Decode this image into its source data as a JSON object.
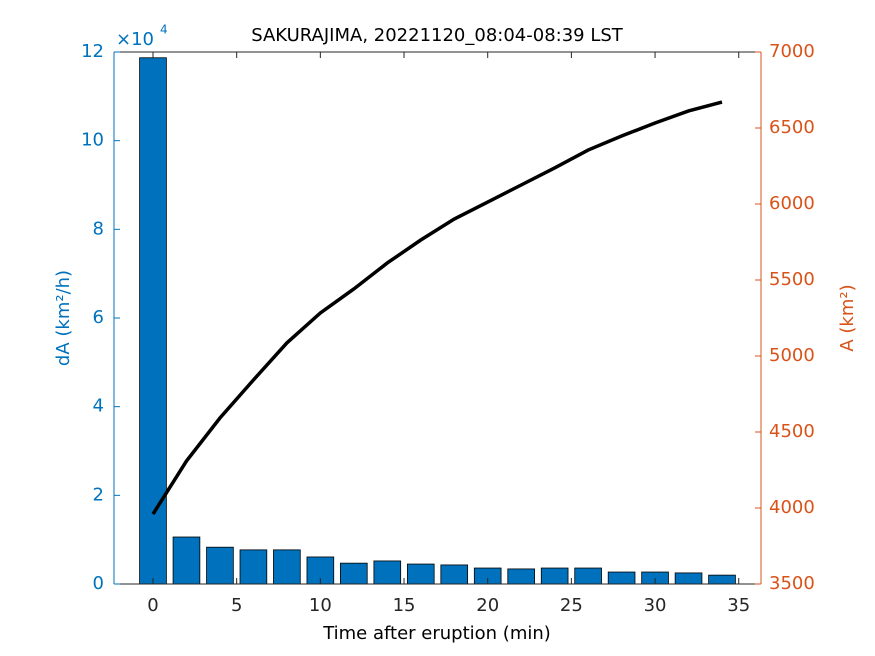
{
  "chart_data": {
    "type": "combo",
    "title": "SAKURAJIMA, 20221120_08:04-08:39 LST",
    "x_label": "Time after eruption (min)",
    "y_label": "dA (km²/h)",
    "y2_label": "A (km²)",
    "y_exponent_label": "×10",
    "y_exponent": 4,
    "x": [
      0,
      2,
      4,
      6,
      8,
      10,
      12,
      14,
      16,
      18,
      20,
      22,
      24,
      26,
      28,
      30,
      32,
      34
    ],
    "xlim": [
      -2.33,
      36.33
    ],
    "xticks": [
      0,
      5,
      10,
      15,
      20,
      25,
      30,
      35
    ],
    "ylim": [
      0,
      12
    ],
    "yticks": [
      0,
      2,
      4,
      6,
      8,
      10,
      12
    ],
    "y2lim": [
      3500,
      7000
    ],
    "y2ticks": [
      3500,
      4000,
      4500,
      5000,
      5500,
      6000,
      6500,
      7000
    ],
    "y_color": "#0072BD",
    "y2_color": "#D95319",
    "series": [
      {
        "type": "bar",
        "color": "#0072BD",
        "values": [
          11.87,
          1.06,
          0.83,
          0.77,
          0.77,
          0.61,
          0.47,
          0.52,
          0.45,
          0.43,
          0.36,
          0.34,
          0.36,
          0.36,
          0.27,
          0.27,
          0.25,
          0.2
        ]
      },
      {
        "type": "line",
        "axis": "y2",
        "color": "#000000",
        "values": [
          3960,
          4309,
          4592,
          4842,
          5086,
          5283,
          5441,
          5612,
          5763,
          5901,
          6013,
          6125,
          6237,
          6355,
          6447,
          6533,
          6612,
          6671
        ]
      }
    ]
  }
}
